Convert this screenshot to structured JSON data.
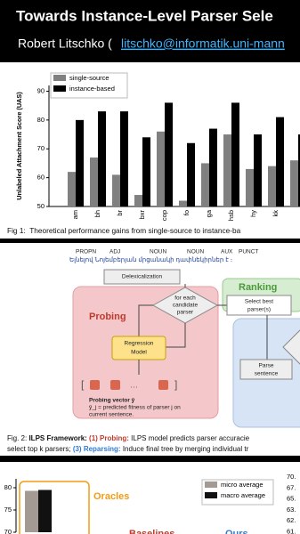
{
  "header": {
    "title": "Towards Instance-Level Parser Sele",
    "author": "Robert Litschko (",
    "email": "litschko@informatik.uni-mann"
  },
  "chart_data": [
    {
      "type": "bar",
      "ylabel": "Unlabeled Attachment Score (UAS)",
      "categories": [
        "am",
        "bh",
        "br",
        "bxr",
        "cop",
        "fo",
        "ga",
        "hsb",
        "hy",
        "kk",
        null
      ],
      "series": [
        {
          "name": "single-source",
          "color": "#808080",
          "values": [
            62,
            67,
            61,
            54,
            76,
            52,
            65,
            75,
            63,
            64,
            66
          ]
        },
        {
          "name": "instance-based",
          "color": "#000000",
          "values": [
            80,
            83,
            83,
            74,
            86,
            72,
            77,
            86,
            75,
            81,
            75
          ]
        }
      ],
      "ylim": [
        50,
        92
      ],
      "yticks": [
        50,
        60,
        70,
        80,
        90
      ],
      "legend": "upper left",
      "caption": "Fig 1:  Theoretical performance gains from single-source to instance-ba"
    },
    {
      "type": "bar",
      "categories": [
        null
      ],
      "series": [
        {
          "name": "micro average",
          "color": "#a39b93",
          "values": [
            79.3
          ]
        },
        {
          "name": "macro average",
          "color": "#111111",
          "values": [
            79.5
          ]
        }
      ],
      "ylim": [
        70,
        82
      ],
      "yticks": [
        70,
        75,
        80
      ],
      "legend": "upper right",
      "annotations": [
        "Oracles",
        "Baselines",
        "Ours"
      ],
      "side_labels": [
        "70.",
        "67.",
        "65.",
        "63.",
        "62.",
        "61."
      ]
    }
  ],
  "figure2": {
    "pos_tags": [
      "PROPN",
      "ADJ",
      "NOUN",
      "NOUN",
      "AUX",
      "PUNCT"
    ],
    "sentence": "Ելնելով Նոյեմբերյան մրցանակի դափնեկիրներ է ։",
    "delex": "Delexicalization",
    "loop": [
      "for each",
      "candidate",
      "parser"
    ],
    "probing": "Probing",
    "model": [
      "Regression",
      "Model"
    ],
    "vector_title": "Probing vector ŷ",
    "vector_desc": [
      "ŷ_j = predicted fitness of parser j on",
      "current sentence."
    ],
    "ranking": "Ranking",
    "select": [
      "Select best",
      "parser(s)"
    ],
    "parse": [
      "Parse",
      "sentence"
    ],
    "caption": [
      [
        "Fig. 2: ",
        "ILPS Framework:",
        " (1) Probing:",
        " ILPS model predicts parser accuracie"
      ],
      [
        "select top k parsers; ",
        "(3) Reparsing:",
        " Induce final tree by merging individual tr"
      ]
    ]
  }
}
